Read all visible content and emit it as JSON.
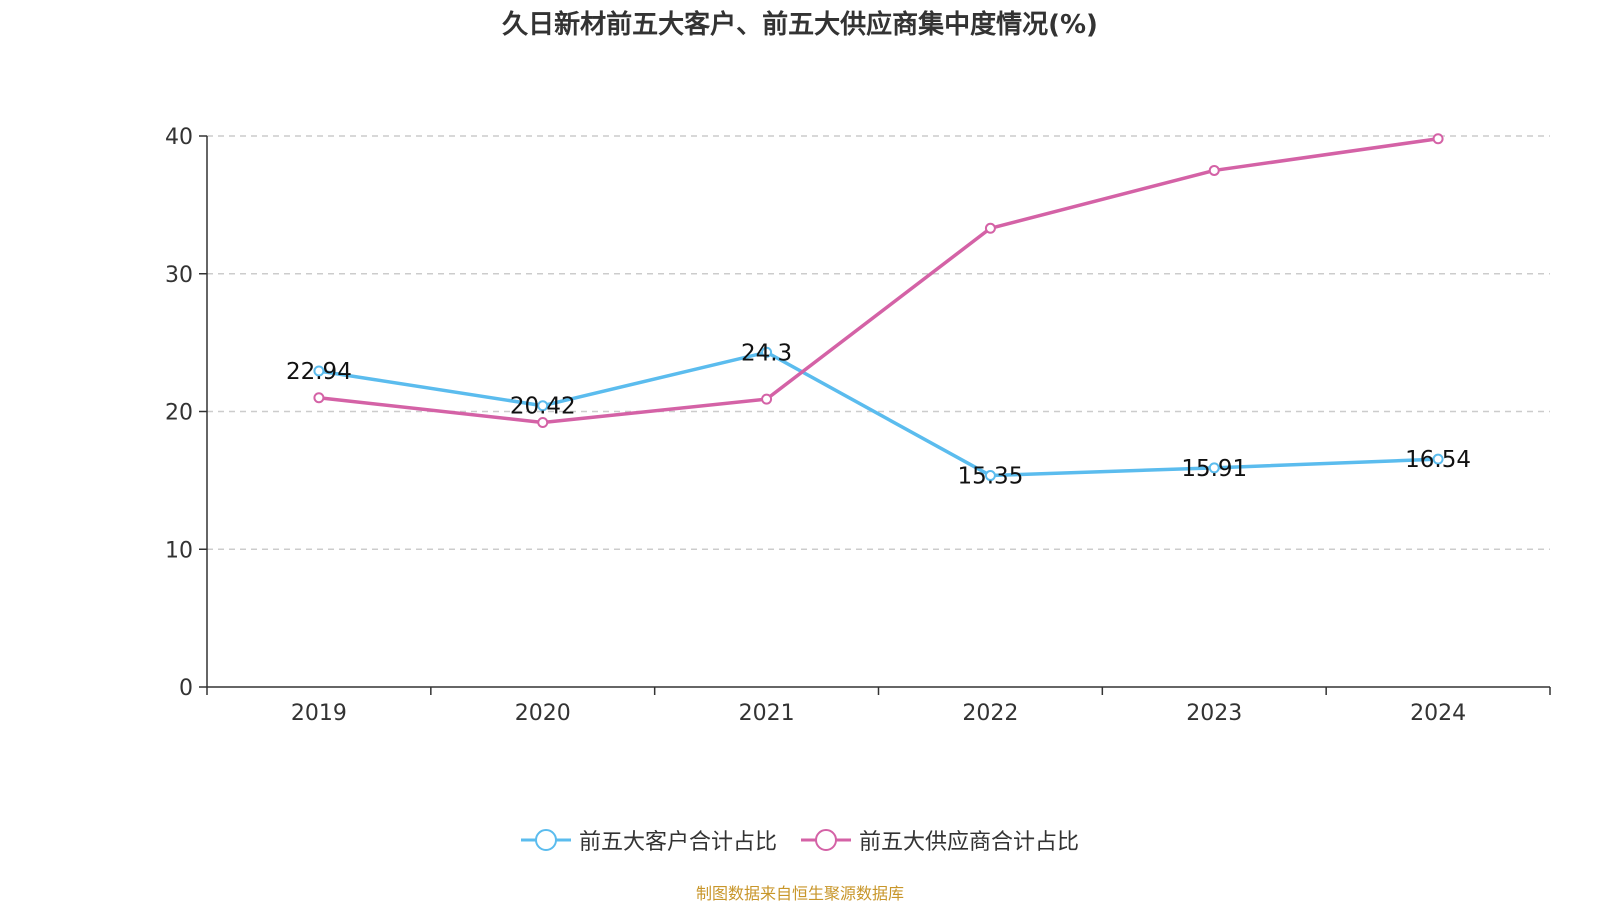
{
  "chart_data": {
    "type": "line",
    "title": "久日新材前五大客户、前五大供应商集中度情况(%)",
    "categories": [
      "2019",
      "2020",
      "2021",
      "2022",
      "2023",
      "2024"
    ],
    "ylim": [
      0,
      40
    ],
    "yticks": [
      0,
      10,
      20,
      30,
      40
    ],
    "grid": true,
    "legend_position": "bottom",
    "series": [
      {
        "name": "前五大客户合计占比",
        "color": "#5bbcee",
        "values": [
          22.94,
          20.42,
          24.3,
          15.35,
          15.91,
          16.54
        ],
        "labels": [
          "22.94",
          "20.42",
          "24.3",
          "15.35",
          "15.91",
          "16.54"
        ]
      },
      {
        "name": "前五大供应商合计占比",
        "color": "#d462a6",
        "values": [
          21.0,
          19.2,
          20.9,
          33.3,
          37.5,
          39.8
        ],
        "labels": []
      }
    ]
  },
  "source_note": "制图数据来自恒生聚源数据库"
}
